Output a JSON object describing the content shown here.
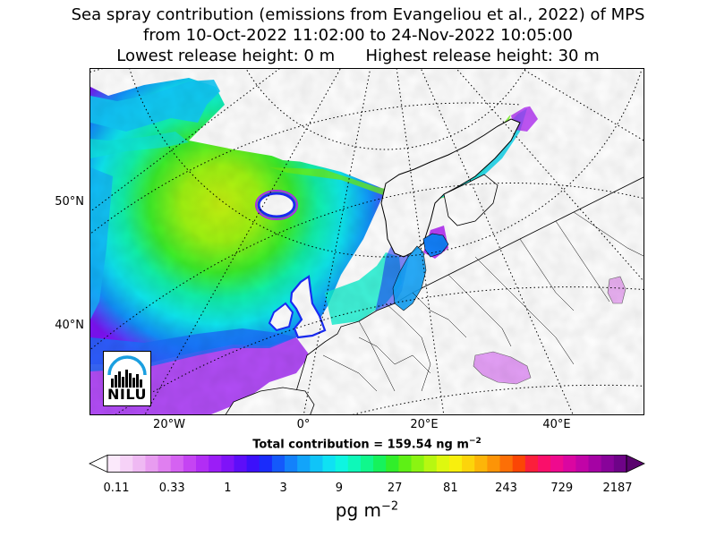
{
  "title": {
    "line1": "Sea spray contribution (emissions from Evangeliou et al., 2022) of MPS",
    "line2": "from 10-Oct-2022 11:02:00 to 24-Nov-2022 10:05:00",
    "line3": "Lowest release height: 0 m      Highest release height: 30 m"
  },
  "map": {
    "lat_labels": [
      "50°N",
      "40°N"
    ],
    "lon_labels": [
      "20°W",
      "0°",
      "20°E",
      "40°E"
    ],
    "projection": "polar stereographic",
    "land_color": "#ffffff",
    "coastline_color": "#000000",
    "graticule_style": "dotted"
  },
  "total": {
    "label": "Total contribution = 159.54 ng m",
    "exponent": "−2"
  },
  "colorbar": {
    "ticks": [
      "0.11",
      "0.33",
      "1",
      "3",
      "9",
      "27",
      "81",
      "243",
      "729",
      "2187"
    ],
    "unit_base": "pg m",
    "unit_exponent": "−2",
    "colors": [
      "#fbe9fb",
      "#f6d2f7",
      "#efb9f3",
      "#e89cf0",
      "#e07ff0",
      "#d562f2",
      "#c544f3",
      "#b22df5",
      "#9b1df7",
      "#7f13f8",
      "#5d0ef9",
      "#3c10fa",
      "#1a2cfb",
      "#1459fb",
      "#1381fb",
      "#12a4fa",
      "#10c4f8",
      "#0fe1f3",
      "#0ef5e1",
      "#0ef8b9",
      "#10f78c",
      "#16f25c",
      "#31ee2a",
      "#5ef015",
      "#8bf412",
      "#b7f711",
      "#def80f",
      "#f8ef0d",
      "#fcd40b",
      "#fdb509",
      "#fd9407",
      "#fc6f06",
      "#fb4605",
      "#fb1f3b",
      "#fa0f6a",
      "#ef0a8e",
      "#da06a1",
      "#c104a7",
      "#a503a4",
      "#88039a",
      "#6e0388"
    ],
    "under_color": "#ffffff",
    "over_color": "#5a036e"
  },
  "logo": {
    "text": "NILU",
    "arc_color": "#1a9fe0"
  }
}
